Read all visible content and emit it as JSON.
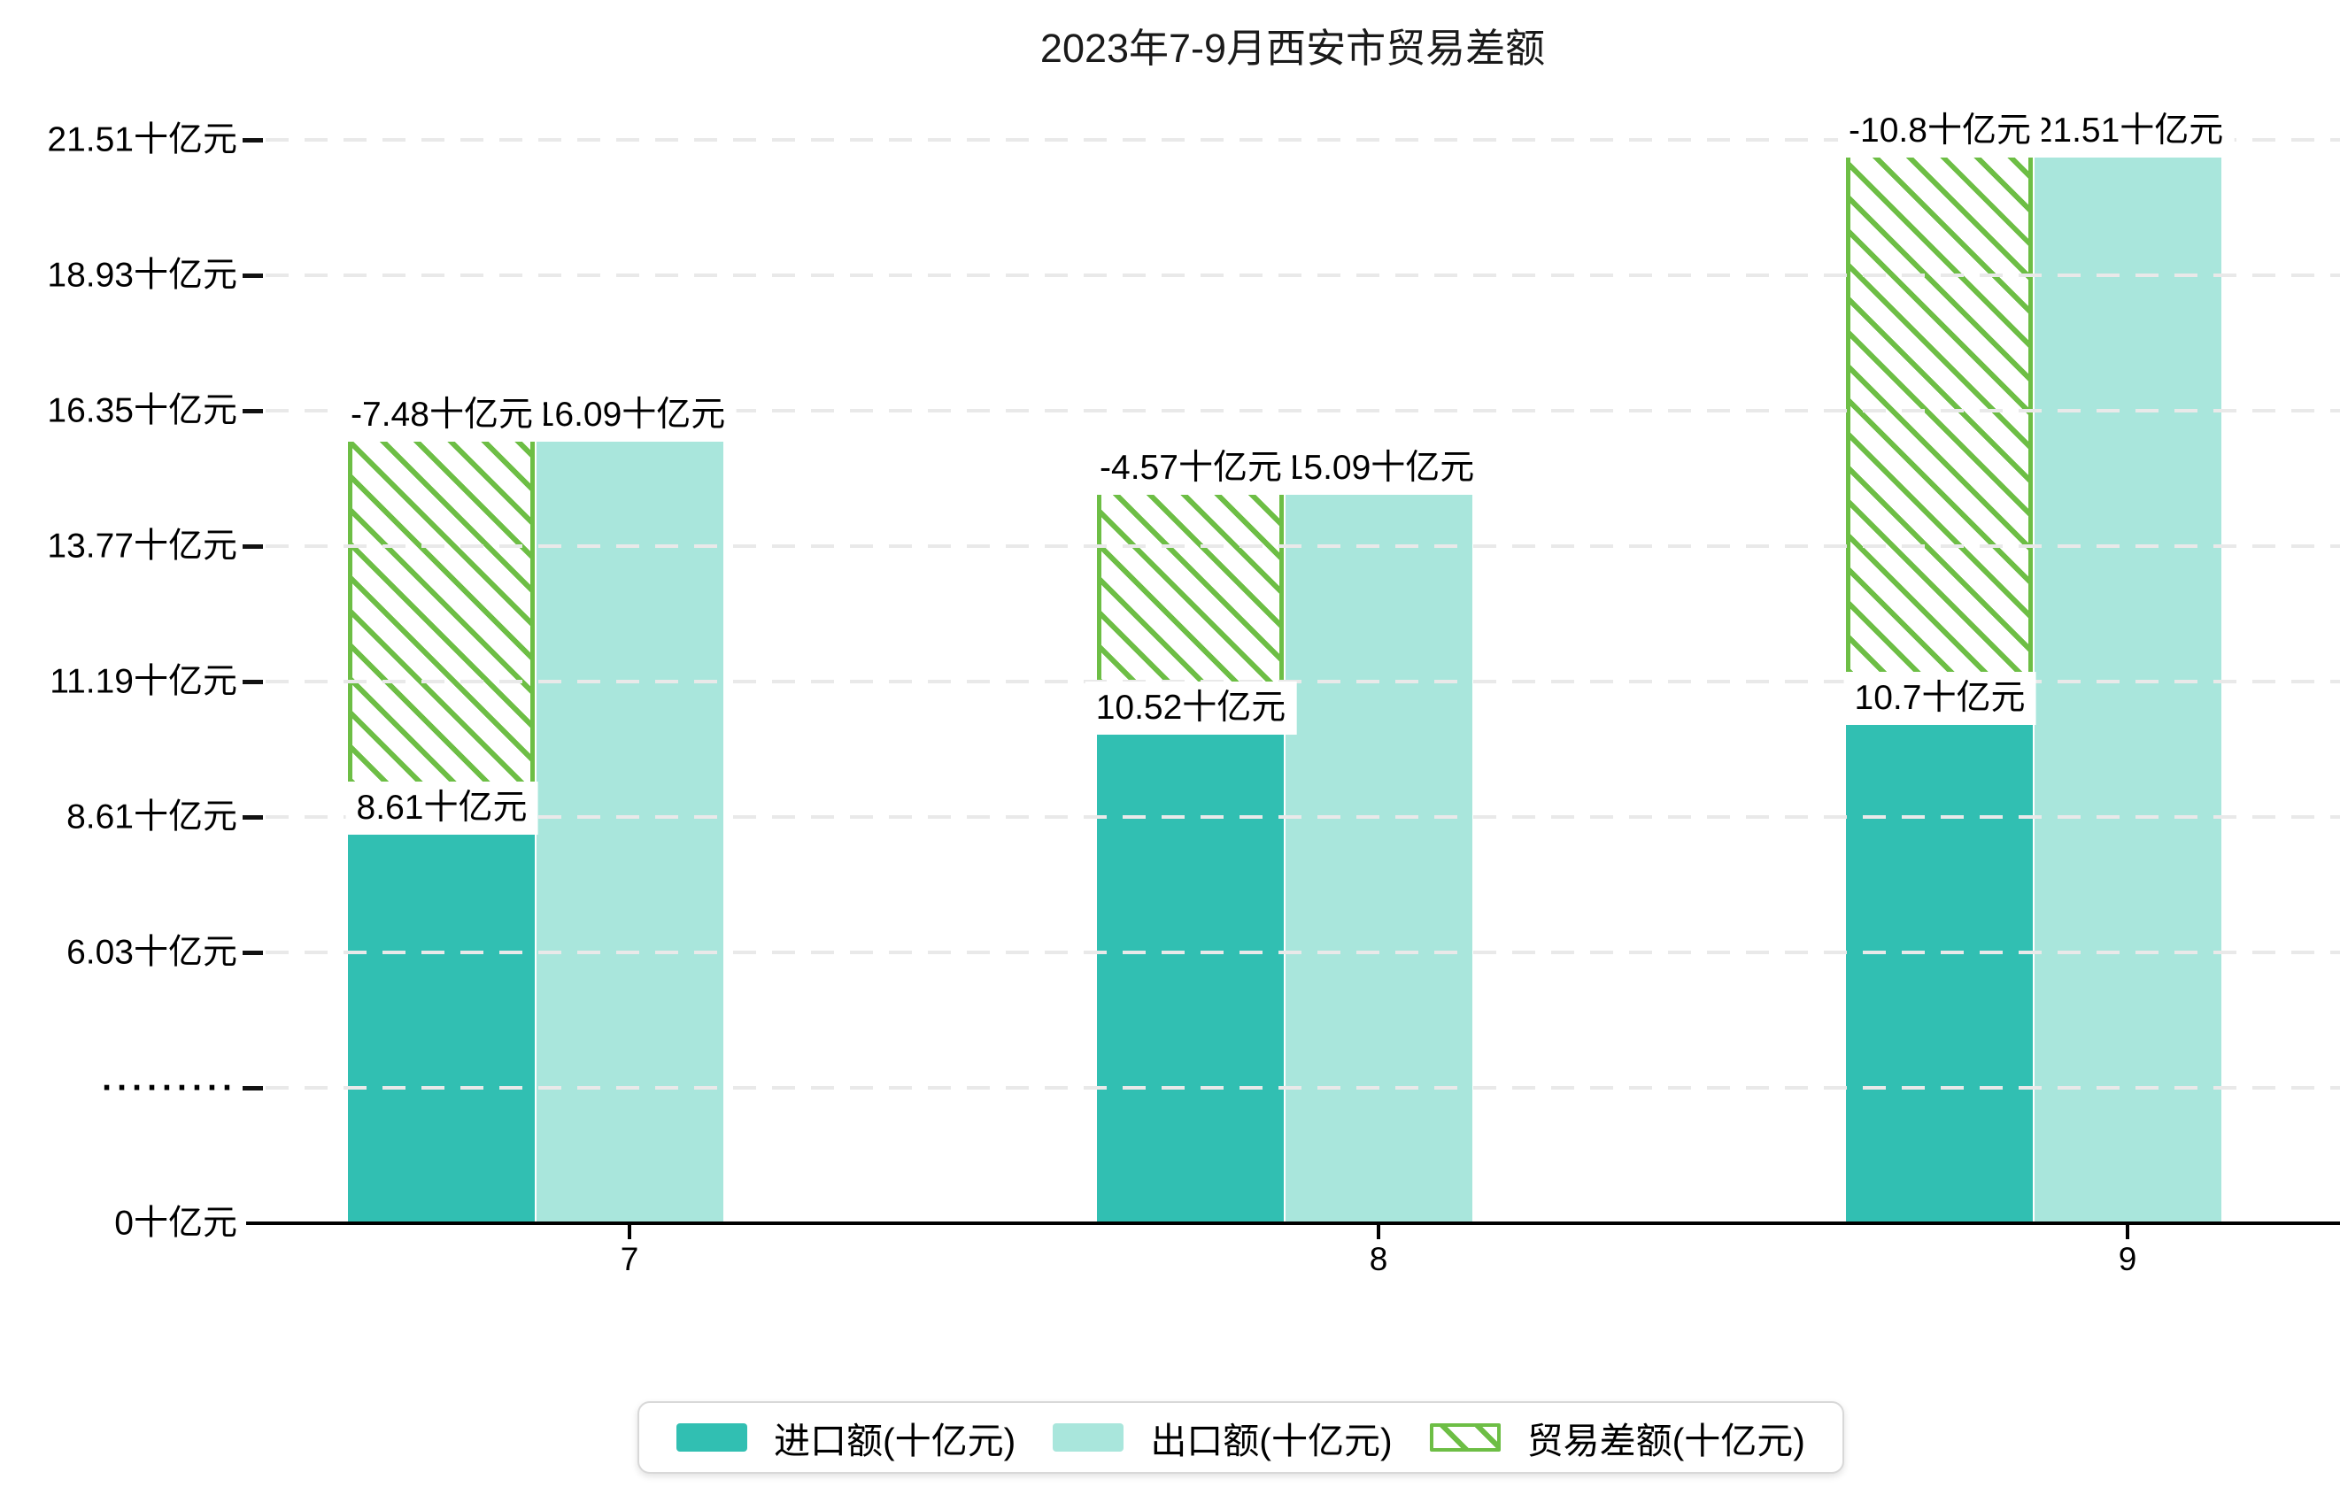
{
  "title": "2023年7-9月西安市贸易差额",
  "y_axis": {
    "tick_labels": [
      "21.51十亿元",
      "18.93十亿元",
      "16.35十亿元",
      "13.77十亿元",
      "11.19十亿元",
      "8.61十亿元",
      "6.03十亿元",
      "·········",
      "0十亿元"
    ]
  },
  "x_axis": {
    "tick_labels": [
      "7",
      "8",
      "9"
    ]
  },
  "legend": {
    "items": [
      {
        "label": "进口额(十亿元)",
        "swatch": "import"
      },
      {
        "label": "出口额(十亿元)",
        "swatch": "export"
      },
      {
        "label": "贸易差额(十亿元)",
        "swatch": "balance"
      }
    ]
  },
  "colors": {
    "import": "#31bfb2",
    "export": "#a9e6dc",
    "balance_green": "#6dbe45",
    "gridline": "#e9e9e9",
    "axis": "#000000",
    "label_background": "#ffffff",
    "text": "#000000"
  },
  "chart_data": {
    "type": "bar",
    "title": "2023年7-9月西安市贸易差额",
    "categories": [
      "7",
      "8",
      "9"
    ],
    "unit": "十亿元",
    "series": [
      {
        "name": "进口额(十亿元)",
        "values": [
          8.61,
          10.52,
          10.7
        ],
        "data_labels": [
          "8.61十亿元",
          "10.52十亿元",
          "10.7十亿元"
        ],
        "style": "solid-teal"
      },
      {
        "name": "出口额(十亿元)",
        "values": [
          16.09,
          15.09,
          21.51
        ],
        "data_labels": [
          "16.09十亿元",
          "15.09十亿元",
          "21.51十亿元"
        ],
        "style": "solid-light-teal"
      },
      {
        "name": "贸易差额(十亿元)",
        "values": [
          -7.48,
          -4.57,
          -10.8
        ],
        "data_labels": [
          "-7.48十亿元",
          "-4.57十亿元",
          "-10.8十亿元"
        ],
        "style": "hatched-green",
        "note": "floating bar spanning from import top to export top over the import bar"
      }
    ],
    "y_ticks": [
      21.51,
      18.93,
      16.35,
      13.77,
      11.19,
      8.61,
      6.03,
      null,
      0
    ],
    "y_axis_note": "tick between 0 and 6.03 is rendered as dots (·········); spacing below 6.03 is compressed",
    "ylim": [
      0,
      21.51
    ],
    "grid": "horizontal dashed lines drawn over bars",
    "legend_position": "bottom-center"
  }
}
